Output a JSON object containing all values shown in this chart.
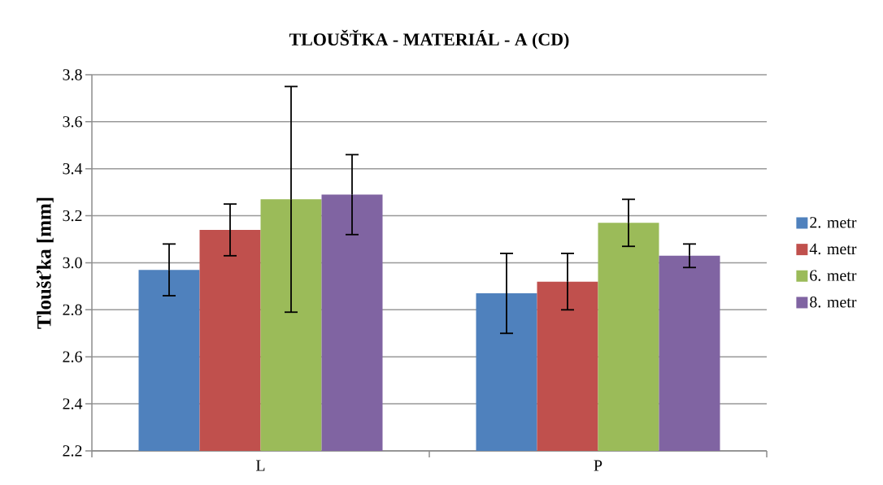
{
  "chart_data": {
    "type": "bar",
    "title": "TLOUŠŤKA - MATERIÁL - A (CD)",
    "ylabel": "Tloušťka [mm]",
    "categories": [
      "L",
      "P"
    ],
    "series": [
      {
        "name": "2. metr",
        "color": "#4f81bd",
        "values": [
          2.97,
          2.87
        ],
        "errors": [
          0.11,
          0.17
        ]
      },
      {
        "name": "4. metr",
        "color": "#c0504d",
        "values": [
          3.14,
          2.92
        ],
        "errors": [
          0.11,
          0.12
        ]
      },
      {
        "name": "6. metr",
        "color": "#9bbb59",
        "values": [
          3.27,
          3.17
        ],
        "errors": [
          0.48,
          0.1
        ]
      },
      {
        "name": "8. metr",
        "color": "#8064a2",
        "values": [
          3.29,
          3.03
        ],
        "errors": [
          0.17,
          0.05
        ]
      }
    ],
    "ylim": [
      2.2,
      3.8
    ],
    "yticks": [
      2.2,
      2.4,
      2.6,
      2.8,
      {
        "value": 3,
        "label": "3.0"
      },
      3.2,
      3.4,
      3.6,
      3.8
    ],
    "grid": "y",
    "legend": "right"
  }
}
